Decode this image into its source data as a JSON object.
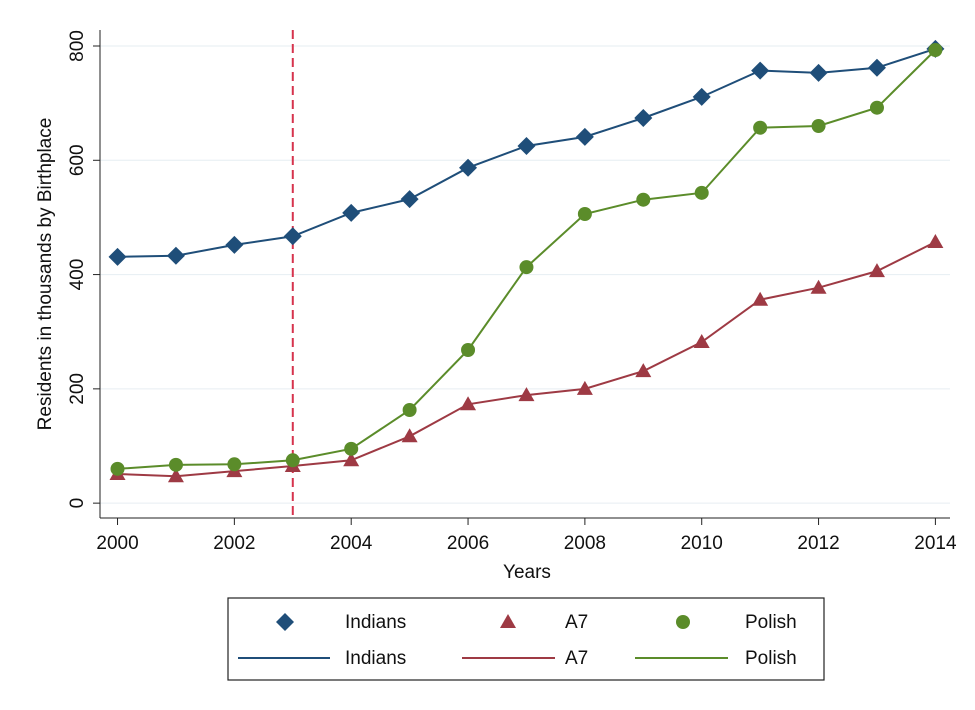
{
  "chart_data": {
    "type": "line",
    "x_label": "Years",
    "y_label": "Residents in thousands by Birthplace",
    "x": [
      2000,
      2001,
      2002,
      2003,
      2004,
      2005,
      2006,
      2007,
      2008,
      2009,
      2010,
      2011,
      2012,
      2013,
      2014
    ],
    "series": [
      {
        "name": "Indians",
        "color": "#1f4e79",
        "marker": "diamond",
        "values": [
          431,
          433,
          452,
          467,
          508,
          532,
          587,
          625,
          641,
          674,
          711,
          757,
          753,
          762,
          795
        ]
      },
      {
        "name": "A7",
        "color": "#9e3a44",
        "marker": "triangle",
        "values": [
          51,
          47,
          56,
          65,
          75,
          117,
          173,
          189,
          200,
          231,
          282,
          356,
          377,
          406,
          457
        ]
      },
      {
        "name": "Polish",
        "color": "#5b8c2a",
        "marker": "circle",
        "values": [
          60,
          67,
          68,
          75,
          95,
          163,
          268,
          413,
          506,
          531,
          543,
          657,
          660,
          692,
          793
        ]
      }
    ],
    "xlim": [
      1999.7,
      2014.25
    ],
    "ylim": [
      -26,
      828
    ],
    "xticks": [
      2000,
      2002,
      2004,
      2006,
      2008,
      2010,
      2012,
      2014
    ],
    "yticks": [
      0,
      200,
      400,
      600,
      800
    ],
    "grid": true,
    "vline": 2003,
    "vline_color": "#d6334d",
    "legend": "bottom"
  }
}
